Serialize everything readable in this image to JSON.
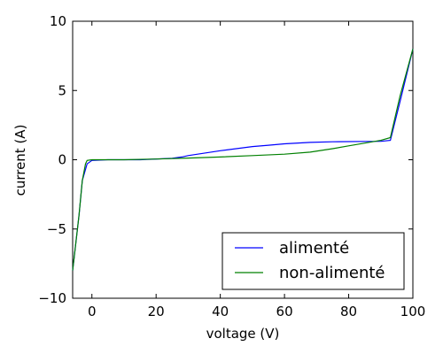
{
  "chart_data": {
    "type": "line",
    "xlabel": "voltage (V)",
    "ylabel": "current (A)",
    "xlim": [
      -6,
      100
    ],
    "ylim": [
      -10,
      10
    ],
    "xticks": [
      0,
      20,
      40,
      60,
      80,
      100
    ],
    "yticks": [
      -10,
      -5,
      0,
      5,
      10
    ],
    "grid": false,
    "legend_position": "lower-right",
    "series": [
      {
        "name": "alimenté",
        "color": "#0000ff",
        "x": [
          -6,
          -4,
          -3,
          -1.5,
          0,
          5,
          15,
          25,
          28,
          30,
          40,
          50,
          55,
          60,
          68,
          75,
          85,
          90,
          93,
          96,
          100
        ],
        "y": [
          -8,
          -4,
          -1.5,
          -0.3,
          -0.05,
          0,
          0,
          0.1,
          0.2,
          0.3,
          0.65,
          0.95,
          1.05,
          1.15,
          1.25,
          1.3,
          1.32,
          1.33,
          1.4,
          4.2,
          8.0
        ]
      },
      {
        "name": "non-alimenté",
        "color": "#008000",
        "x": [
          -6,
          -4,
          -3,
          -2,
          -1.5,
          0,
          10,
          20,
          30,
          40,
          50,
          60,
          68,
          75,
          80,
          85,
          90,
          93,
          96,
          100
        ],
        "y": [
          -8,
          -4,
          -1.5,
          -0.3,
          -0.05,
          0,
          0,
          0.05,
          0.12,
          0.2,
          0.3,
          0.4,
          0.55,
          0.8,
          1.0,
          1.2,
          1.4,
          1.6,
          4.6,
          8.0
        ]
      }
    ]
  }
}
